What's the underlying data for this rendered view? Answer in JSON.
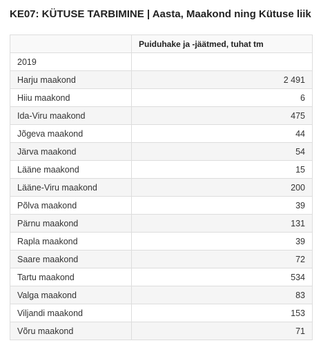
{
  "title": "KE07: KÜTUSE TARBIMINE | Aasta, Maakond ning Kütuse liik",
  "table": {
    "header_col1": "",
    "header_col2": "Puiduhake ja -jäätmed, tuhat tm",
    "year_row": {
      "label": "2019",
      "value": ""
    },
    "rows": [
      {
        "label": "Harju maakond",
        "value": "2 491"
      },
      {
        "label": "Hiiu maakond",
        "value": "6"
      },
      {
        "label": "Ida-Viru maakond",
        "value": "475"
      },
      {
        "label": "Jõgeva maakond",
        "value": "44"
      },
      {
        "label": "Järva maakond",
        "value": "54"
      },
      {
        "label": "Lääne maakond",
        "value": "15"
      },
      {
        "label": "Lääne-Viru maakond",
        "value": "200"
      },
      {
        "label": "Põlva maakond",
        "value": "39"
      },
      {
        "label": "Pärnu maakond",
        "value": "131"
      },
      {
        "label": "Rapla maakond",
        "value": "39"
      },
      {
        "label": "Saare maakond",
        "value": "72"
      },
      {
        "label": "Tartu maakond",
        "value": "534"
      },
      {
        "label": "Valga maakond",
        "value": "83"
      },
      {
        "label": "Viljandi maakond",
        "value": "153"
      },
      {
        "label": "Võru maakond",
        "value": "71"
      }
    ]
  }
}
